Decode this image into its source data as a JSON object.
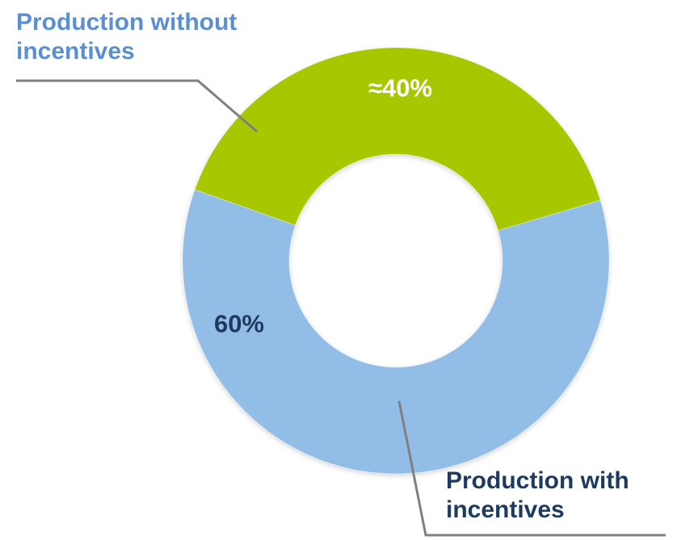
{
  "chart_data": {
    "type": "pie",
    "donut": true,
    "slices": [
      {
        "name": "Production without incentives",
        "value": 60,
        "display": "60%",
        "color": "#92bde7"
      },
      {
        "name": "Production with incentives",
        "value": 40,
        "display": "≈40%",
        "color": "#a7c701"
      }
    ],
    "callouts": {
      "without": {
        "line1": "Production without",
        "line2": "incentives"
      },
      "with": {
        "line1": "Production with",
        "line2": "incentives"
      }
    }
  },
  "colors": {
    "label_blue": "#5b8fd0",
    "label_navy": "#1f3a5f",
    "pct_dark": "#1f3a5f",
    "pct_light": "#ffffff",
    "leader": "#808080"
  }
}
